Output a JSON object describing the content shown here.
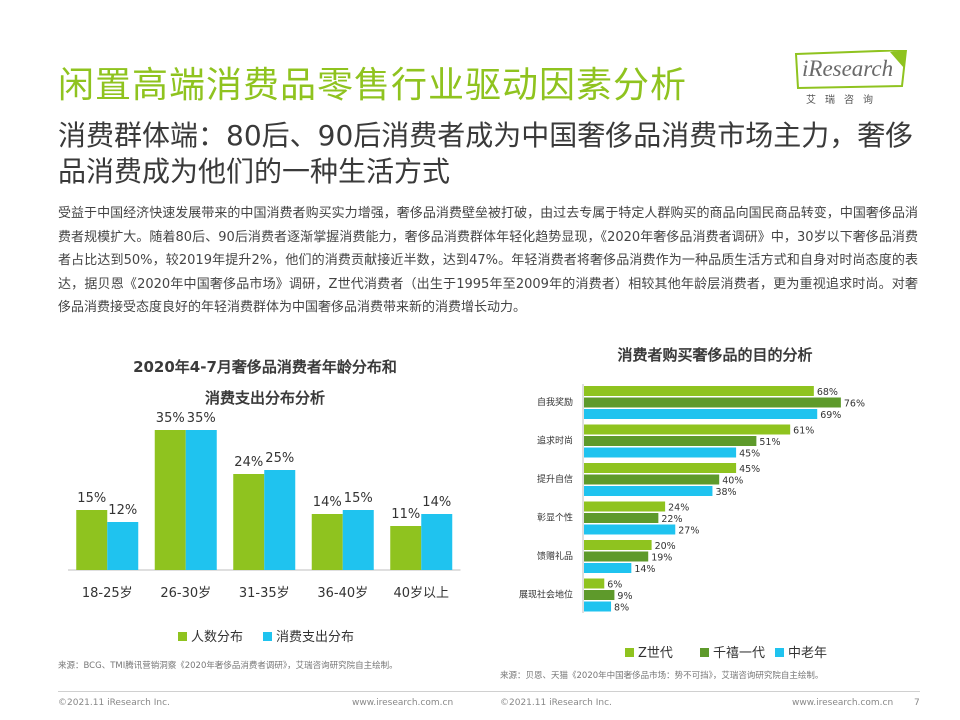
{
  "title": "闲置高端消费品零售行业驱动因素分析",
  "logo": {
    "word": "iResearch",
    "sub": "艾瑞咨询"
  },
  "subtitle": "消费群体端：80后、90后消费者成为中国奢侈品消费市场主力，奢侈品消费成为他们的一种生活方式",
  "body": "受益于中国经济快速发展带来的中国消费者购买实力增强，奢侈品消费壁垒被打破，由过去专属于特定人群购买的商品向国民商品转变，中国奢侈品消费者规模扩大。随着80后、90后消费者逐渐掌握消费能力，奢侈品消费群体年轻化趋势显现，《2020年奢侈品消费者调研》中，30岁以下奢侈品消费者占比达到50%，较2019年提升2%，他们的消费贡献接近半数，达到47%。年轻消费者将奢侈品消费作为一种品质生活方式和自身对时尚态度的表达，据贝恩《2020年中国奢侈品市场》调研，Z世代消费者（出生于1995年至2009年的消费者）相较其他年龄层消费者，更为重视追求时尚。对奢侈品消费接受态度良好的年轻消费群体为中国奢侈品消费带来新的消费增长动力。",
  "colors": {
    "green": "#8fc31f",
    "blue": "#1fc3ef",
    "darkgreen": "#5e9a2b"
  },
  "chart_data": [
    {
      "type": "bar",
      "title_line1": "2020年4-7月奢侈品消费者年龄分布和",
      "title_line2": "消费支出分布分析",
      "categories": [
        "18-25岁",
        "26-30岁",
        "31-35岁",
        "36-40岁",
        "40岁以上"
      ],
      "series": [
        {
          "name": "人数分布",
          "values": [
            15,
            35,
            24,
            14,
            11
          ],
          "labels": [
            "15%",
            "35%",
            "24%",
            "14%",
            "11%"
          ],
          "color": "#8fc31f"
        },
        {
          "name": "消费支出分布",
          "values": [
            12,
            35,
            25,
            15,
            14
          ],
          "labels": [
            "12%",
            "35%",
            "25%",
            "15%",
            "14%"
          ],
          "color": "#1fc3ef"
        }
      ],
      "ylim": [
        0,
        40
      ]
    },
    {
      "type": "bar",
      "orientation": "horizontal",
      "title": "消费者购买奢侈品的目的分析",
      "categories": [
        "自我奖励",
        "追求时尚",
        "提升自信",
        "彰显个性",
        "馈赠礼品",
        "展现社会地位"
      ],
      "series": [
        {
          "name": "Z世代",
          "values": [
            68,
            61,
            45,
            24,
            20,
            6
          ],
          "labels": [
            "68%",
            "61%",
            "45%",
            "24%",
            "20%",
            "6%"
          ],
          "color": "#8fc31f"
        },
        {
          "name": "千禧一代",
          "values": [
            76,
            51,
            40,
            22,
            19,
            9
          ],
          "labels": [
            "76%",
            "51%",
            "40%",
            "22%",
            "19%",
            "9%"
          ],
          "color": "#5e9a2b"
        },
        {
          "name": "中老年",
          "values": [
            69,
            45,
            38,
            27,
            14,
            8
          ],
          "labels": [
            "69%",
            "45%",
            "38%",
            "27%",
            "14%",
            "8%"
          ],
          "color": "#1fc3ef"
        }
      ],
      "xlim": [
        0,
        80
      ]
    }
  ],
  "source1": "来源：BCG、TMI腾讯营销洞察《2020年奢侈品消费者调研》，艾瑞咨询研究院自主绘制。",
  "source2": "来源：贝恩、天猫《2020年中国奢侈品市场：势不可挡》，艾瑞咨询研究院自主绘制。",
  "footer": {
    "left1": "©2021.11 iResearch Inc.",
    "mid1": "www.iresearch.com.cn",
    "left2": "©2021.11 iResearch Inc.",
    "mid2": "www.iresearch.com.cn",
    "page": "7"
  }
}
